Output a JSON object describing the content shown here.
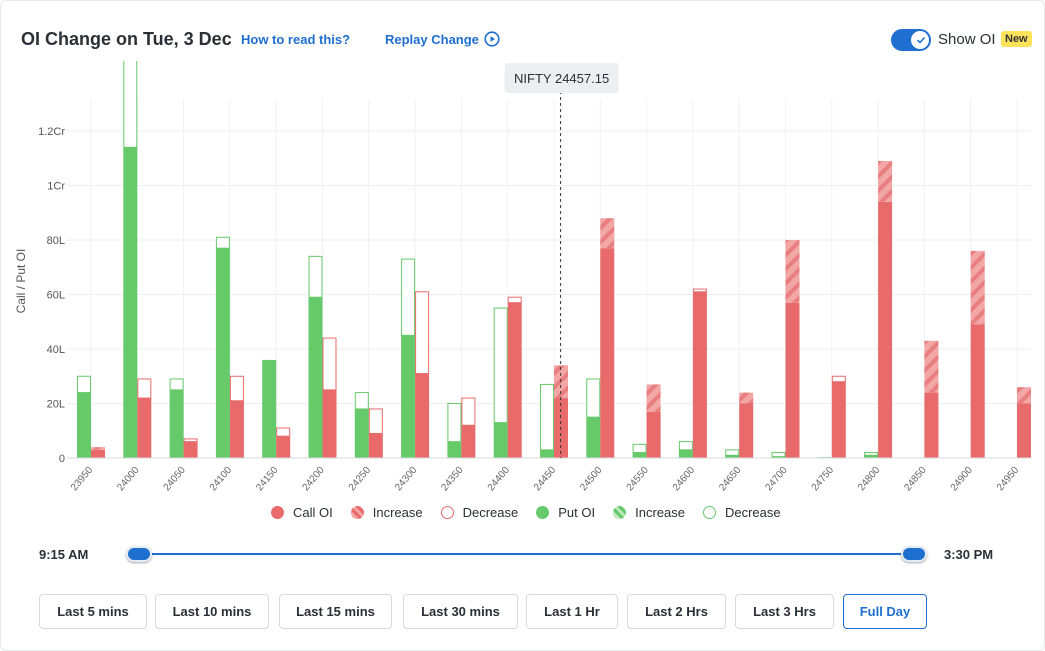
{
  "header": {
    "title": "OI Change on Tue, 3 Dec",
    "how_to_read": "How to read this?",
    "replay": "Replay Change",
    "show_oi_label": "Show OI",
    "new_badge": "New",
    "show_oi_on": true
  },
  "spot": {
    "label": "NIFTY 24457.15",
    "value": 24457.15
  },
  "colors": {
    "call": "#e86a6a",
    "call_light": "#f3a6a6",
    "put": "#66c96a",
    "put_light": "#bfe8c0",
    "accent": "#1f6fd1"
  },
  "chart_data": {
    "type": "bar",
    "ylabel": "Call / Put OI",
    "y_ticks": [
      "0",
      "20L",
      "40L",
      "60L",
      "80L",
      "1Cr",
      "1.2Cr"
    ],
    "y_tick_values": [
      0,
      20,
      40,
      60,
      80,
      100,
      120
    ],
    "ylim": [
      0,
      130
    ],
    "unit": "Lakh",
    "categories": [
      "23950",
      "24000",
      "24050",
      "24100",
      "24150",
      "24200",
      "24250",
      "24300",
      "24350",
      "24400",
      "24450",
      "24500",
      "24550",
      "24600",
      "24650",
      "24700",
      "24750",
      "24800",
      "24850",
      "24900",
      "24950"
    ],
    "series": [
      {
        "name": "Put OI",
        "kind": "put",
        "start": [
          30,
          146,
          29,
          81,
          36,
          74,
          24,
          73,
          20,
          55,
          27,
          29,
          5,
          6,
          3,
          2,
          0.3,
          2,
          0,
          0,
          0
        ],
        "end": [
          24,
          114,
          25,
          77,
          36,
          59,
          18,
          45,
          6,
          13,
          3,
          15,
          2,
          3,
          1,
          0.5,
          0.3,
          1,
          0,
          0,
          0
        ]
      },
      {
        "name": "Call OI",
        "kind": "call",
        "start": [
          3,
          29,
          7,
          30,
          11,
          44,
          18,
          61,
          22,
          59,
          22,
          77,
          17,
          62,
          20,
          57,
          30,
          94,
          24,
          49,
          20
        ],
        "end": [
          4,
          22,
          6,
          21,
          8,
          25,
          9,
          31,
          12,
          57,
          34,
          88,
          27,
          61,
          24,
          80,
          28,
          109,
          43,
          76,
          26
        ]
      }
    ],
    "legend": [
      {
        "label": "Call OI",
        "style": "call-solid"
      },
      {
        "label": "Increase",
        "style": "call-hatch"
      },
      {
        "label": "Decrease",
        "style": "call-outline"
      },
      {
        "label": "Put OI",
        "style": "put-solid"
      },
      {
        "label": "Increase",
        "style": "put-hatch"
      },
      {
        "label": "Decrease",
        "style": "put-outline"
      }
    ]
  },
  "slider": {
    "start_label": "9:15 AM",
    "end_label": "3:30 PM"
  },
  "time_buttons": [
    {
      "label": "Last 5 mins",
      "active": false
    },
    {
      "label": "Last 10 mins",
      "active": false
    },
    {
      "label": "Last 15 mins",
      "active": false
    },
    {
      "label": "Last 30 mins",
      "active": false
    },
    {
      "label": "Last 1 Hr",
      "active": false
    },
    {
      "label": "Last 2 Hrs",
      "active": false
    },
    {
      "label": "Last 3 Hrs",
      "active": false
    },
    {
      "label": "Full Day",
      "active": true
    }
  ]
}
